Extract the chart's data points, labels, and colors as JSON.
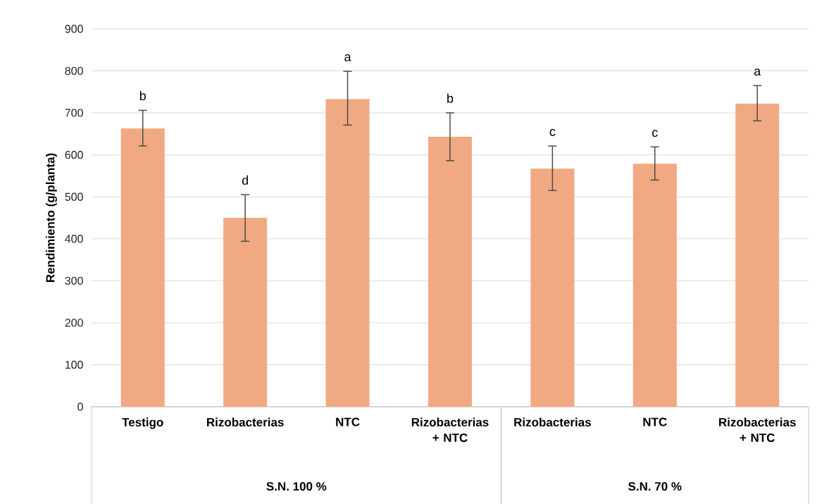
{
  "chart_data": {
    "type": "bar",
    "ylabel": "Rendimiento (g/planta)",
    "categories": [
      "Testigo",
      "Rizobacterias",
      "NTC",
      "Rizobacterias + NTC",
      "Rizobacterias",
      "NTC",
      "Rizobacterias + NTC"
    ],
    "values": [
      663,
      450,
      733,
      643,
      567,
      579,
      722
    ],
    "errors": [
      [
        621,
        706
      ],
      [
        394,
        505
      ],
      [
        671,
        799
      ],
      [
        586,
        700
      ],
      [
        515,
        621
      ],
      [
        540,
        619
      ],
      [
        681,
        765
      ]
    ],
    "value_labels": [
      "b",
      "d",
      "a",
      "b",
      "c",
      "c",
      "a"
    ],
    "color": "#f0a982",
    "ylim": [
      0,
      900
    ],
    "yticks": [
      0,
      100,
      200,
      300,
      400,
      500,
      600,
      700,
      800,
      900
    ],
    "grid": "y",
    "annotations": [
      "S.N. 100 %",
      "S.N. 70 %"
    ]
  }
}
